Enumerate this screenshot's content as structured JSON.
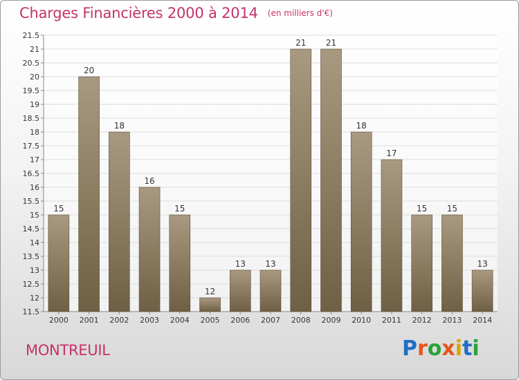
{
  "header": {
    "title": "Charges Financières 2000 à 2014",
    "unit": "(en milliers d'€)"
  },
  "footer": {
    "city": "MONTREUIL",
    "logo": "Proxiti",
    "logo_colors": [
      "#1f6fc4",
      "#e8541c",
      "#29a33a",
      "#e8541c",
      "#d9a400",
      "#1f6fc4",
      "#29a33a"
    ]
  },
  "colors": {
    "accent": "#c4336a",
    "bar_top": "#a89980",
    "bar_bottom": "#6f5f44"
  },
  "chart_data": {
    "type": "bar",
    "title": "Charges Financières 2000 à 2014",
    "subtitle": "(en milliers d'€)",
    "xlabel": "",
    "ylabel": "",
    "categories": [
      "2000",
      "2001",
      "2002",
      "2003",
      "2004",
      "2005",
      "2006",
      "2007",
      "2008",
      "2009",
      "2010",
      "2011",
      "2012",
      "2013",
      "2014"
    ],
    "values": [
      15,
      20,
      18,
      16,
      15,
      12,
      13,
      13,
      21,
      21,
      18,
      17,
      15,
      15,
      13
    ],
    "data_labels": [
      "15",
      "20",
      "18",
      "16",
      "15",
      "12",
      "13",
      "13",
      "21",
      "21",
      "18",
      "17",
      "15",
      "15",
      "13"
    ],
    "ylim": [
      11.5,
      21.5
    ],
    "yticks": [
      "11.5",
      "12",
      "12.5",
      "13",
      "13.5",
      "14",
      "14.5",
      "15",
      "15.5",
      "16",
      "16.5",
      "17",
      "17.5",
      "18",
      "18.5",
      "19",
      "19.5",
      "20",
      "20.5",
      "21",
      "21.5"
    ],
    "grid": true,
    "legend": "none"
  }
}
